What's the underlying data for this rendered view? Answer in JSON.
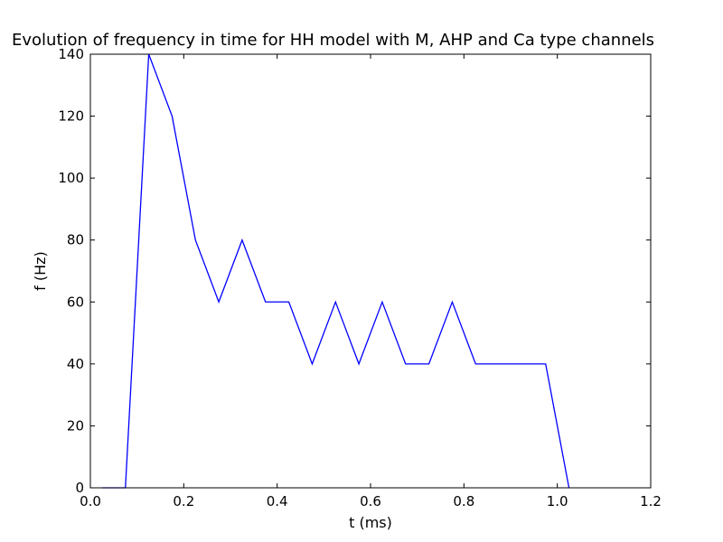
{
  "chart_data": {
    "type": "line",
    "title": "Evolution of frequency in time for HH model with M, AHP and Ca type channels",
    "xlabel": "t (ms)",
    "ylabel": "f (Hz)",
    "xlim": [
      0.0,
      1.2
    ],
    "ylim": [
      0,
      140
    ],
    "xticks": [
      0.0,
      0.2,
      0.4,
      0.6,
      0.8,
      1.0,
      1.2
    ],
    "xtick_labels": [
      "0.0",
      "0.2",
      "0.4",
      "0.6",
      "0.8",
      "1.0",
      "1.2"
    ],
    "yticks": [
      0,
      20,
      40,
      60,
      80,
      100,
      120,
      140
    ],
    "ytick_labels": [
      "0",
      "20",
      "40",
      "60",
      "80",
      "100",
      "120",
      "140"
    ],
    "grid": false,
    "series": [
      {
        "color": "#0000ff",
        "x": [
          0.025,
          0.075,
          0.125,
          0.175,
          0.225,
          0.275,
          0.325,
          0.375,
          0.425,
          0.475,
          0.525,
          0.575,
          0.625,
          0.675,
          0.725,
          0.775,
          0.825,
          0.875,
          0.925,
          0.975,
          1.025
        ],
        "y": [
          0,
          0,
          140,
          120,
          80,
          60,
          80,
          60,
          60,
          40,
          60,
          40,
          60,
          40,
          40,
          60,
          40,
          40,
          40,
          40,
          0
        ]
      }
    ]
  }
}
